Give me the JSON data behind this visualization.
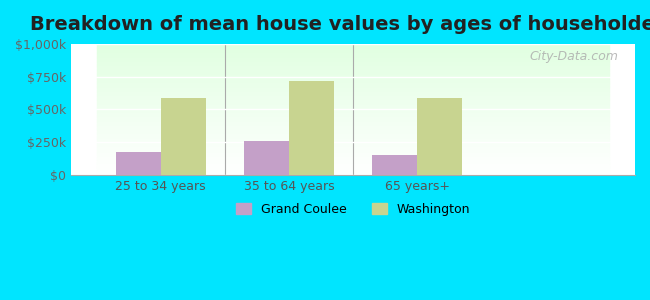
{
  "title": "Breakdown of mean house values by ages of householders",
  "categories": [
    "25 to 34 years",
    "35 to 64 years",
    "65 years+"
  ],
  "grand_coulee": [
    175000,
    255000,
    150000
  ],
  "washington": [
    590000,
    720000,
    590000
  ],
  "grand_coulee_color": "#c4a0c8",
  "washington_color": "#c8d490",
  "background_outer": "#00e5ff",
  "ylim": [
    0,
    1000000
  ],
  "yticks": [
    0,
    250000,
    500000,
    750000,
    1000000
  ],
  "ytick_labels": [
    "$0",
    "$250k",
    "$500k",
    "$750k",
    "$1,000k"
  ],
  "legend_labels": [
    "Grand Coulee",
    "Washington"
  ],
  "bar_width": 0.35,
  "title_fontsize": 14,
  "watermark_text": "City-Data.com"
}
